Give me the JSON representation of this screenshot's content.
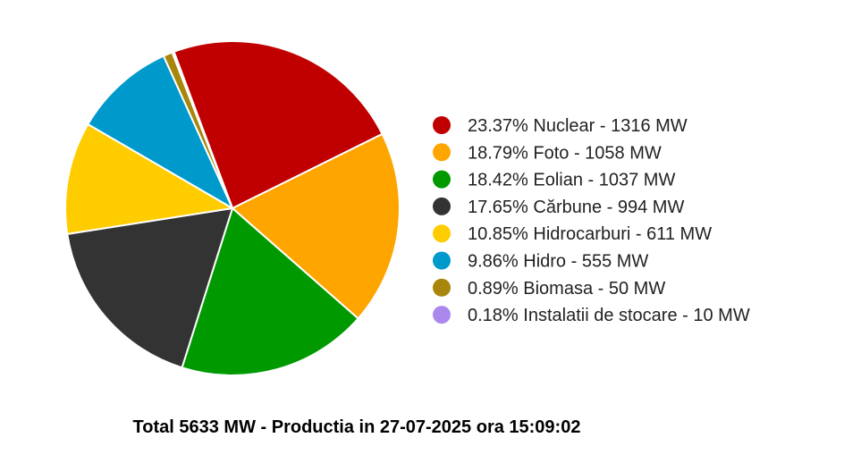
{
  "chart_data": {
    "type": "pie",
    "title": "",
    "legend_position": "right",
    "slices": [
      {
        "percent_label": "23.37%",
        "name": "Nuclear",
        "value": 1316,
        "unit": "MW",
        "color": "#c00000"
      },
      {
        "percent_label": "18.79%",
        "name": "Foto",
        "value": 1058,
        "unit": "MW",
        "color": "#ffa500"
      },
      {
        "percent_label": "18.42%",
        "name": "Eolian",
        "value": 1037,
        "unit": "MW",
        "color": "#009a00"
      },
      {
        "percent_label": "17.65%",
        "name": "Cărbune",
        "value": 994,
        "unit": "MW",
        "color": "#333333"
      },
      {
        "percent_label": "10.85%",
        "name": "Hidrocarburi",
        "value": 611,
        "unit": "MW",
        "color": "#ffcc00"
      },
      {
        "percent_label": "9.86%",
        "name": "Hidro",
        "value": 555,
        "unit": "MW",
        "color": "#0099cc"
      },
      {
        "percent_label": "0.89%",
        "name": "Biomasa",
        "value": 50,
        "unit": "MW",
        "color": "#a8860b"
      },
      {
        "percent_label": "0.18%",
        "name": "Instalatii de stocare",
        "value": 10,
        "unit": "MW",
        "color": "#aa88ee"
      }
    ],
    "footer": "Total 5633 MW - Productia in 27-07-2025 ora 15:09:02"
  }
}
